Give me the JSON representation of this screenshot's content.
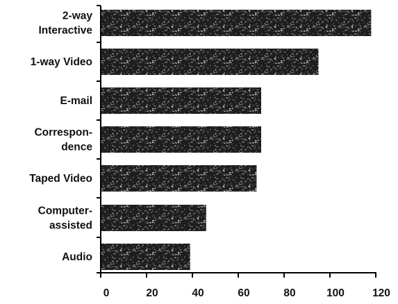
{
  "chart_data": {
    "type": "bar",
    "orientation": "horizontal",
    "categories": [
      [
        "2-way",
        "Interactive"
      ],
      [
        "1-way Video"
      ],
      [
        "E-mail"
      ],
      [
        "Correspon-",
        "dence"
      ],
      [
        "Taped Video"
      ],
      [
        "Computer-",
        "assisted"
      ],
      [
        "Audio"
      ]
    ],
    "values": [
      118,
      95,
      70,
      70,
      68,
      46,
      39
    ],
    "title": "",
    "xlabel": "",
    "ylabel": "",
    "xlim": [
      0,
      120
    ],
    "xticks": [
      0,
      20,
      40,
      60,
      80,
      100,
      120
    ],
    "grid": false,
    "bar_color": "#1e1e1e",
    "texture_color": "#d8d8d8"
  }
}
